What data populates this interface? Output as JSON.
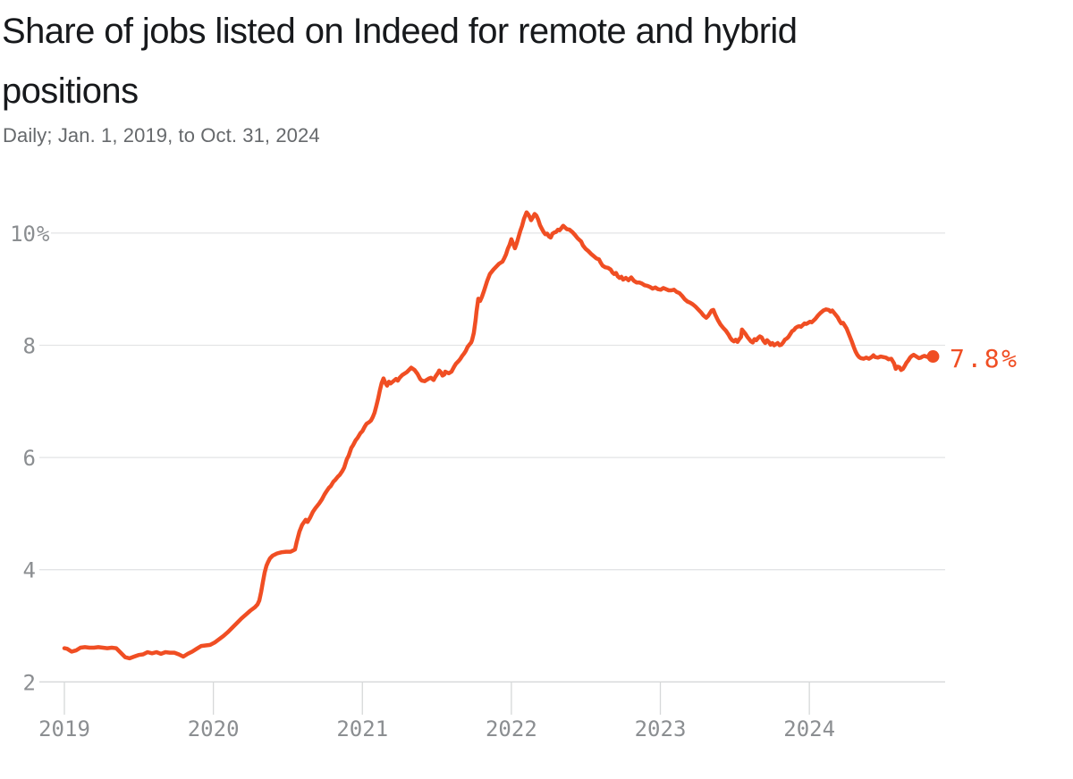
{
  "header": {
    "title_lines": [
      "Share of jobs listed on Indeed for remote and hybrid",
      "positions"
    ],
    "subtitle": "Daily; Jan. 1, 2019, to Oct. 31, 2024"
  },
  "chart_data": {
    "type": "line",
    "title": "Share of jobs listed on Indeed for remote and hybrid positions",
    "subtitle": "Daily; Jan. 1, 2019, to Oct. 31, 2024",
    "unit": "%",
    "xlabel": "",
    "ylabel": "",
    "xlim": [
      2019,
      2024.92
    ],
    "ylim": [
      2,
      10.5
    ],
    "grid": "horizontal",
    "legend": "none",
    "x_ticks": [
      2019,
      2020,
      2021,
      2022,
      2023,
      2024
    ],
    "y_ticks": [
      {
        "v": 2,
        "label": "2"
      },
      {
        "v": 4,
        "label": "4"
      },
      {
        "v": 6,
        "label": "6"
      },
      {
        "v": 8,
        "label": "8"
      },
      {
        "v": 10,
        "label": "10%"
      }
    ],
    "end_label": "7.8%",
    "end_point": {
      "t": 2024.83,
      "v": 7.8
    },
    "line_color": "#f04e23",
    "grid_color": "#e3e4e6",
    "axis_color": "#d6d8d9",
    "label_color": "#8b8e91",
    "points": [
      [
        2019.0,
        2.6
      ],
      [
        2019.018,
        2.59
      ],
      [
        2019.048,
        2.54
      ],
      [
        2019.078,
        2.56
      ],
      [
        2019.108,
        2.61
      ],
      [
        2019.138,
        2.62
      ],
      [
        2019.168,
        2.61
      ],
      [
        2019.198,
        2.61
      ],
      [
        2019.228,
        2.62
      ],
      [
        2019.258,
        2.61
      ],
      [
        2019.288,
        2.6
      ],
      [
        2019.318,
        2.61
      ],
      [
        2019.348,
        2.6
      ],
      [
        2019.378,
        2.52
      ],
      [
        2019.408,
        2.44
      ],
      [
        2019.438,
        2.42
      ],
      [
        2019.468,
        2.45
      ],
      [
        2019.498,
        2.48
      ],
      [
        2019.528,
        2.49
      ],
      [
        2019.558,
        2.53
      ],
      [
        2019.588,
        2.51
      ],
      [
        2019.618,
        2.53
      ],
      [
        2019.648,
        2.5
      ],
      [
        2019.678,
        2.53
      ],
      [
        2019.708,
        2.52
      ],
      [
        2019.738,
        2.52
      ],
      [
        2019.768,
        2.49
      ],
      [
        2019.798,
        2.45
      ],
      [
        2019.828,
        2.5
      ],
      [
        2019.858,
        2.54
      ],
      [
        2019.888,
        2.59
      ],
      [
        2019.918,
        2.64
      ],
      [
        2019.948,
        2.65
      ],
      [
        2019.978,
        2.66
      ],
      [
        2020.008,
        2.7
      ],
      [
        2020.038,
        2.76
      ],
      [
        2020.068,
        2.82
      ],
      [
        2020.098,
        2.89
      ],
      [
        2020.128,
        2.97
      ],
      [
        2020.158,
        3.05
      ],
      [
        2020.188,
        3.13
      ],
      [
        2020.218,
        3.2
      ],
      [
        2020.248,
        3.27
      ],
      [
        2020.278,
        3.33
      ],
      [
        2020.296,
        3.38
      ],
      [
        2020.308,
        3.45
      ],
      [
        2020.32,
        3.6
      ],
      [
        2020.332,
        3.78
      ],
      [
        2020.344,
        3.95
      ],
      [
        2020.356,
        4.07
      ],
      [
        2020.368,
        4.14
      ],
      [
        2020.38,
        4.2
      ],
      [
        2020.398,
        4.25
      ],
      [
        2020.428,
        4.29
      ],
      [
        2020.458,
        4.31
      ],
      [
        2020.488,
        4.32
      ],
      [
        2020.518,
        4.32
      ],
      [
        2020.548,
        4.36
      ],
      [
        2020.56,
        4.5
      ],
      [
        2020.578,
        4.68
      ],
      [
        2020.596,
        4.8
      ],
      [
        2020.62,
        4.89
      ],
      [
        2020.632,
        4.85
      ],
      [
        2020.65,
        4.93
      ],
      [
        2020.668,
        5.03
      ],
      [
        2020.686,
        5.1
      ],
      [
        2020.71,
        5.18
      ],
      [
        2020.728,
        5.25
      ],
      [
        2020.746,
        5.34
      ],
      [
        2020.758,
        5.39
      ],
      [
        2020.776,
        5.46
      ],
      [
        2020.788,
        5.49
      ],
      [
        2020.806,
        5.57
      ],
      [
        2020.818,
        5.6
      ],
      [
        2020.836,
        5.66
      ],
      [
        2020.848,
        5.69
      ],
      [
        2020.866,
        5.76
      ],
      [
        2020.878,
        5.82
      ],
      [
        2020.896,
        5.97
      ],
      [
        2020.908,
        6.03
      ],
      [
        2020.926,
        6.17
      ],
      [
        2020.938,
        6.22
      ],
      [
        2020.956,
        6.31
      ],
      [
        2020.968,
        6.35
      ],
      [
        2020.986,
        6.43
      ],
      [
        2021.0,
        6.47
      ],
      [
        2021.016,
        6.55
      ],
      [
        2021.028,
        6.6
      ],
      [
        2021.046,
        6.63
      ],
      [
        2021.058,
        6.66
      ],
      [
        2021.07,
        6.72
      ],
      [
        2021.082,
        6.8
      ],
      [
        2021.094,
        6.92
      ],
      [
        2021.106,
        7.05
      ],
      [
        2021.118,
        7.2
      ],
      [
        2021.13,
        7.33
      ],
      [
        2021.142,
        7.41
      ],
      [
        2021.154,
        7.33
      ],
      [
        2021.166,
        7.28
      ],
      [
        2021.178,
        7.35
      ],
      [
        2021.19,
        7.32
      ],
      [
        2021.208,
        7.36
      ],
      [
        2021.226,
        7.4
      ],
      [
        2021.238,
        7.37
      ],
      [
        2021.25,
        7.42
      ],
      [
        2021.268,
        7.47
      ],
      [
        2021.298,
        7.52
      ],
      [
        2021.328,
        7.6
      ],
      [
        2021.35,
        7.56
      ],
      [
        2021.37,
        7.49
      ],
      [
        2021.388,
        7.4
      ],
      [
        2021.4,
        7.37
      ],
      [
        2021.418,
        7.36
      ],
      [
        2021.43,
        7.38
      ],
      [
        2021.448,
        7.41
      ],
      [
        2021.46,
        7.42
      ],
      [
        2021.478,
        7.38
      ],
      [
        2021.49,
        7.44
      ],
      [
        2021.508,
        7.51
      ],
      [
        2021.516,
        7.55
      ],
      [
        2021.526,
        7.52
      ],
      [
        2021.538,
        7.46
      ],
      [
        2021.55,
        7.48
      ],
      [
        2021.556,
        7.53
      ],
      [
        2021.58,
        7.5
      ],
      [
        2021.598,
        7.53
      ],
      [
        2021.616,
        7.62
      ],
      [
        2021.628,
        7.67
      ],
      [
        2021.646,
        7.72
      ],
      [
        2021.658,
        7.76
      ],
      [
        2021.67,
        7.81
      ],
      [
        2021.682,
        7.85
      ],
      [
        2021.694,
        7.9
      ],
      [
        2021.706,
        7.97
      ],
      [
        2021.718,
        8.01
      ],
      [
        2021.73,
        8.05
      ],
      [
        2021.736,
        8.09
      ],
      [
        2021.748,
        8.22
      ],
      [
        2021.76,
        8.45
      ],
      [
        2021.766,
        8.6
      ],
      [
        2021.778,
        8.83
      ],
      [
        2021.79,
        8.79
      ],
      [
        2021.802,
        8.86
      ],
      [
        2021.814,
        8.95
      ],
      [
        2021.826,
        9.05
      ],
      [
        2021.838,
        9.15
      ],
      [
        2021.856,
        9.27
      ],
      [
        2021.88,
        9.35
      ],
      [
        2021.898,
        9.4
      ],
      [
        2021.916,
        9.45
      ],
      [
        2021.94,
        9.49
      ],
      [
        2021.952,
        9.55
      ],
      [
        2021.964,
        9.62
      ],
      [
        2021.976,
        9.72
      ],
      [
        2021.988,
        9.79
      ],
      [
        2022.0,
        9.89
      ],
      [
        2022.012,
        9.81
      ],
      [
        2022.024,
        9.73
      ],
      [
        2022.036,
        9.82
      ],
      [
        2022.048,
        9.93
      ],
      [
        2022.06,
        10.04
      ],
      [
        2022.072,
        10.13
      ],
      [
        2022.084,
        10.25
      ],
      [
        2022.096,
        10.33
      ],
      [
        2022.102,
        10.37
      ],
      [
        2022.114,
        10.33
      ],
      [
        2022.126,
        10.27
      ],
      [
        2022.132,
        10.23
      ],
      [
        2022.144,
        10.28
      ],
      [
        2022.156,
        10.34
      ],
      [
        2022.168,
        10.31
      ],
      [
        2022.18,
        10.24
      ],
      [
        2022.192,
        10.14
      ],
      [
        2022.204,
        10.08
      ],
      [
        2022.216,
        10.02
      ],
      [
        2022.228,
        9.98
      ],
      [
        2022.24,
        9.99
      ],
      [
        2022.252,
        9.94
      ],
      [
        2022.264,
        9.92
      ],
      [
        2022.276,
        9.99
      ],
      [
        2022.288,
        10.01
      ],
      [
        2022.3,
        10.02
      ],
      [
        2022.312,
        10.06
      ],
      [
        2022.324,
        10.05
      ],
      [
        2022.336,
        10.09
      ],
      [
        2022.348,
        10.13
      ],
      [
        2022.36,
        10.1
      ],
      [
        2022.372,
        10.07
      ],
      [
        2022.39,
        10.06
      ],
      [
        2022.408,
        10.02
      ],
      [
        2022.426,
        9.97
      ],
      [
        2022.444,
        9.91
      ],
      [
        2022.468,
        9.85
      ],
      [
        2022.48,
        9.78
      ],
      [
        2022.498,
        9.72
      ],
      [
        2022.516,
        9.68
      ],
      [
        2022.534,
        9.63
      ],
      [
        2022.552,
        9.59
      ],
      [
        2022.57,
        9.55
      ],
      [
        2022.588,
        9.53
      ],
      [
        2022.6,
        9.47
      ],
      [
        2022.612,
        9.42
      ],
      [
        2022.63,
        9.39
      ],
      [
        2022.648,
        9.38
      ],
      [
        2022.666,
        9.35
      ],
      [
        2022.678,
        9.3
      ],
      [
        2022.69,
        9.27
      ],
      [
        2022.702,
        9.29
      ],
      [
        2022.714,
        9.23
      ],
      [
        2022.726,
        9.2
      ],
      [
        2022.738,
        9.22
      ],
      [
        2022.75,
        9.17
      ],
      [
        2022.768,
        9.2
      ],
      [
        2022.786,
        9.16
      ],
      [
        2022.804,
        9.21
      ],
      [
        2022.822,
        9.15
      ],
      [
        2022.84,
        9.12
      ],
      [
        2022.858,
        9.12
      ],
      [
        2022.876,
        9.1
      ],
      [
        2022.894,
        9.07
      ],
      [
        2022.912,
        9.06
      ],
      [
        2022.93,
        9.04
      ],
      [
        2022.948,
        9.01
      ],
      [
        2022.966,
        9.03
      ],
      [
        2022.984,
        9.0
      ],
      [
        2023.002,
        8.99
      ],
      [
        2023.02,
        9.02
      ],
      [
        2023.038,
        9.0
      ],
      [
        2023.056,
        8.98
      ],
      [
        2023.074,
        8.98
      ],
      [
        2023.092,
        8.99
      ],
      [
        2023.11,
        8.95
      ],
      [
        2023.128,
        8.93
      ],
      [
        2023.146,
        8.88
      ],
      [
        2023.164,
        8.82
      ],
      [
        2023.182,
        8.78
      ],
      [
        2023.2,
        8.76
      ],
      [
        2023.218,
        8.73
      ],
      [
        2023.236,
        8.69
      ],
      [
        2023.254,
        8.64
      ],
      [
        2023.272,
        8.59
      ],
      [
        2023.29,
        8.53
      ],
      [
        2023.308,
        8.49
      ],
      [
        2023.32,
        8.52
      ],
      [
        2023.332,
        8.57
      ],
      [
        2023.344,
        8.62
      ],
      [
        2023.356,
        8.63
      ],
      [
        2023.368,
        8.55
      ],
      [
        2023.386,
        8.45
      ],
      [
        2023.404,
        8.37
      ],
      [
        2023.422,
        8.31
      ],
      [
        2023.44,
        8.26
      ],
      [
        2023.458,
        8.19
      ],
      [
        2023.47,
        8.13
      ],
      [
        2023.482,
        8.09
      ],
      [
        2023.494,
        8.07
      ],
      [
        2023.506,
        8.1
      ],
      [
        2023.518,
        8.06
      ],
      [
        2023.53,
        8.11
      ],
      [
        2023.542,
        8.15
      ],
      [
        2023.548,
        8.28
      ],
      [
        2023.56,
        8.24
      ],
      [
        2023.572,
        8.2
      ],
      [
        2023.584,
        8.15
      ],
      [
        2023.596,
        8.11
      ],
      [
        2023.608,
        8.07
      ],
      [
        2023.62,
        8.05
      ],
      [
        2023.632,
        8.11
      ],
      [
        2023.644,
        8.09
      ],
      [
        2023.656,
        8.13
      ],
      [
        2023.668,
        8.16
      ],
      [
        2023.68,
        8.14
      ],
      [
        2023.692,
        8.08
      ],
      [
        2023.704,
        8.04
      ],
      [
        2023.716,
        8.09
      ],
      [
        2023.728,
        8.06
      ],
      [
        2023.74,
        8.01
      ],
      [
        2023.752,
        8.04
      ],
      [
        2023.764,
        8.0
      ],
      [
        2023.776,
        8.02
      ],
      [
        2023.788,
        8.04
      ],
      [
        2023.8,
        8.0
      ],
      [
        2023.812,
        8.01
      ],
      [
        2023.824,
        8.05
      ],
      [
        2023.836,
        8.1
      ],
      [
        2023.848,
        8.12
      ],
      [
        2023.86,
        8.15
      ],
      [
        2023.872,
        8.2
      ],
      [
        2023.884,
        8.25
      ],
      [
        2023.896,
        8.27
      ],
      [
        2023.908,
        8.31
      ],
      [
        2023.92,
        8.33
      ],
      [
        2023.932,
        8.34
      ],
      [
        2023.944,
        8.33
      ],
      [
        2023.956,
        8.36
      ],
      [
        2023.968,
        8.39
      ],
      [
        2023.98,
        8.38
      ],
      [
        2023.992,
        8.4
      ],
      [
        2024.004,
        8.42
      ],
      [
        2024.016,
        8.41
      ],
      [
        2024.028,
        8.44
      ],
      [
        2024.04,
        8.47
      ],
      [
        2024.058,
        8.53
      ],
      [
        2024.076,
        8.58
      ],
      [
        2024.094,
        8.62
      ],
      [
        2024.112,
        8.64
      ],
      [
        2024.13,
        8.63
      ],
      [
        2024.142,
        8.6
      ],
      [
        2024.154,
        8.62
      ],
      [
        2024.166,
        8.58
      ],
      [
        2024.178,
        8.54
      ],
      [
        2024.19,
        8.5
      ],
      [
        2024.202,
        8.44
      ],
      [
        2024.214,
        8.39
      ],
      [
        2024.226,
        8.4
      ],
      [
        2024.238,
        8.35
      ],
      [
        2024.25,
        8.3
      ],
      [
        2024.262,
        8.22
      ],
      [
        2024.274,
        8.14
      ],
      [
        2024.286,
        8.06
      ],
      [
        2024.298,
        7.97
      ],
      [
        2024.31,
        7.89
      ],
      [
        2024.322,
        7.83
      ],
      [
        2024.334,
        7.79
      ],
      [
        2024.346,
        7.77
      ],
      [
        2024.364,
        7.76
      ],
      [
        2024.382,
        7.78
      ],
      [
        2024.4,
        7.76
      ],
      [
        2024.418,
        7.79
      ],
      [
        2024.43,
        7.82
      ],
      [
        2024.442,
        7.79
      ],
      [
        2024.46,
        7.78
      ],
      [
        2024.478,
        7.8
      ],
      [
        2024.496,
        7.79
      ],
      [
        2024.514,
        7.78
      ],
      [
        2024.532,
        7.75
      ],
      [
        2024.55,
        7.76
      ],
      [
        2024.568,
        7.68
      ],
      [
        2024.58,
        7.58
      ],
      [
        2024.592,
        7.62
      ],
      [
        2024.604,
        7.61
      ],
      [
        2024.616,
        7.56
      ],
      [
        2024.628,
        7.58
      ],
      [
        2024.64,
        7.63
      ],
      [
        2024.652,
        7.69
      ],
      [
        2024.664,
        7.73
      ],
      [
        2024.676,
        7.78
      ],
      [
        2024.688,
        7.81
      ],
      [
        2024.7,
        7.83
      ],
      [
        2024.712,
        7.81
      ],
      [
        2024.724,
        7.79
      ],
      [
        2024.736,
        7.77
      ],
      [
        2024.748,
        7.78
      ],
      [
        2024.76,
        7.8
      ],
      [
        2024.772,
        7.81
      ],
      [
        2024.784,
        7.8
      ],
      [
        2024.796,
        7.79
      ],
      [
        2024.808,
        7.78
      ],
      [
        2024.826,
        7.8
      ]
    ]
  }
}
